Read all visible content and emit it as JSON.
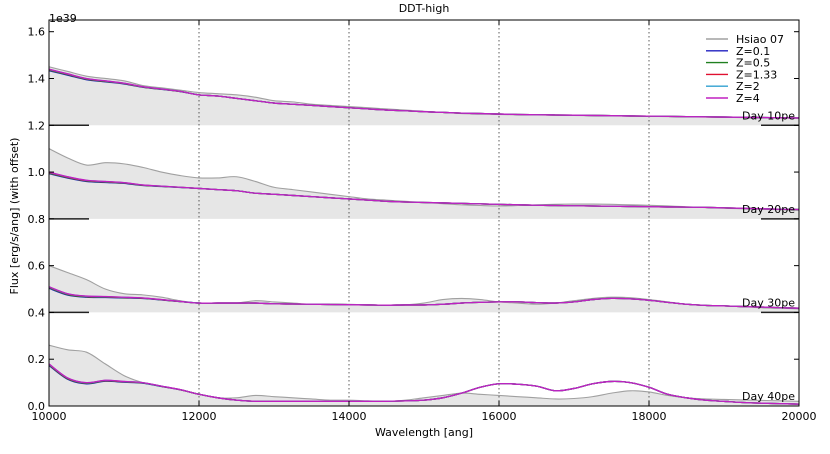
{
  "chart_data": {
    "type": "line",
    "title": "DDT-high",
    "xlabel": "Wavelength [ang]",
    "ylabel": "Flux [erg/s/ang] (with offset)",
    "y_scale_label": "1e39",
    "xlim": [
      10000,
      20000
    ],
    "ylim": [
      0.0,
      1.65
    ],
    "x_ticks": [
      10000,
      12000,
      14000,
      16000,
      18000,
      20000
    ],
    "x_tick_labels": [
      "10000",
      "12000",
      "14000",
      "16000",
      "18000",
      "20000"
    ],
    "y_ticks": [
      0.0,
      0.2,
      0.4,
      0.6,
      0.8,
      1.0,
      1.2,
      1.4,
      1.6
    ],
    "y_tick_labels": [
      "0.0",
      "0.2",
      "0.4",
      "0.6",
      "0.8",
      "1.0",
      "1.2",
      "1.4",
      "1.6"
    ],
    "vlines": [
      12000,
      14000,
      16000,
      18000
    ],
    "legend_position": "top-right",
    "legend": [
      {
        "name": "Hsiao 07",
        "color": "#a0a0a0"
      },
      {
        "name": "Z=0.1",
        "color": "#2020c0"
      },
      {
        "name": "Z=0.5",
        "color": "#208020"
      },
      {
        "name": "Z=1.33",
        "color": "#e01030"
      },
      {
        "name": "Z=2",
        "color": "#30a0d0"
      },
      {
        "name": "Z=4",
        "color": "#c020c0"
      }
    ],
    "x": [
      10000,
      10250,
      10500,
      10750,
      11000,
      11250,
      11500,
      11750,
      12000,
      12250,
      12500,
      12750,
      13000,
      13250,
      13500,
      13750,
      14000,
      14250,
      14500,
      14750,
      15000,
      15250,
      15500,
      15750,
      16000,
      16250,
      16500,
      16750,
      17000,
      17250,
      17500,
      17750,
      18000,
      18250,
      18500,
      18750,
      19000,
      19250,
      19500,
      19750,
      20000
    ],
    "panels": [
      {
        "label": "Day 10pe",
        "offset": 1.2,
        "hsiao": [
          1.45,
          1.43,
          1.41,
          1.4,
          1.39,
          1.37,
          1.36,
          1.35,
          1.34,
          1.335,
          1.33,
          1.32,
          1.305,
          1.3,
          1.29,
          1.285,
          1.28,
          1.275,
          1.27,
          1.265,
          1.26,
          1.255,
          1.25,
          1.248,
          1.246,
          1.245,
          1.244,
          1.243,
          1.242,
          1.241,
          1.24,
          1.239,
          1.238,
          1.237,
          1.236,
          1.235,
          1.234,
          1.233,
          1.232,
          1.231,
          1.23
        ],
        "model": [
          1.44,
          1.42,
          1.4,
          1.39,
          1.38,
          1.365,
          1.355,
          1.345,
          1.33,
          1.325,
          1.315,
          1.305,
          1.295,
          1.29,
          1.285,
          1.28,
          1.275,
          1.27,
          1.265,
          1.262,
          1.258,
          1.255,
          1.252,
          1.25,
          1.248,
          1.246,
          1.245,
          1.244,
          1.243,
          1.242,
          1.241,
          1.24,
          1.239,
          1.238,
          1.237,
          1.236,
          1.235,
          1.234,
          1.233,
          1.232,
          1.231
        ]
      },
      {
        "label": "Day 20pe",
        "offset": 0.8,
        "hsiao": [
          1.1,
          1.06,
          1.03,
          1.04,
          1.035,
          1.02,
          1.0,
          0.985,
          0.975,
          0.975,
          0.98,
          0.96,
          0.935,
          0.925,
          0.915,
          0.905,
          0.895,
          0.885,
          0.88,
          0.875,
          0.87,
          0.865,
          0.86,
          0.857,
          0.855,
          0.857,
          0.86,
          0.862,
          0.863,
          0.863,
          0.862,
          0.86,
          0.858,
          0.855,
          0.852,
          0.848,
          0.845,
          0.843,
          0.841,
          0.839,
          0.837
        ],
        "model": [
          1.0,
          0.98,
          0.965,
          0.96,
          0.955,
          0.945,
          0.94,
          0.935,
          0.93,
          0.925,
          0.92,
          0.91,
          0.905,
          0.9,
          0.895,
          0.89,
          0.885,
          0.88,
          0.875,
          0.872,
          0.87,
          0.868,
          0.866,
          0.864,
          0.862,
          0.86,
          0.858,
          0.857,
          0.856,
          0.855,
          0.854,
          0.853,
          0.852,
          0.851,
          0.85,
          0.849,
          0.847,
          0.845,
          0.843,
          0.841,
          0.84
        ]
      },
      {
        "label": "Day 30pe",
        "offset": 0.4,
        "hsiao": [
          0.6,
          0.57,
          0.54,
          0.5,
          0.48,
          0.475,
          0.465,
          0.45,
          0.44,
          0.44,
          0.44,
          0.45,
          0.445,
          0.44,
          0.435,
          0.435,
          0.435,
          0.432,
          0.43,
          0.432,
          0.44,
          0.455,
          0.46,
          0.455,
          0.445,
          0.44,
          0.435,
          0.44,
          0.45,
          0.46,
          0.465,
          0.463,
          0.455,
          0.445,
          0.435,
          0.43,
          0.428,
          0.425,
          0.42,
          0.418,
          0.415
        ],
        "model": [
          0.51,
          0.48,
          0.47,
          0.468,
          0.465,
          0.462,
          0.455,
          0.447,
          0.44,
          0.44,
          0.44,
          0.44,
          0.437,
          0.436,
          0.435,
          0.434,
          0.433,
          0.432,
          0.431,
          0.432,
          0.432,
          0.435,
          0.44,
          0.443,
          0.445,
          0.445,
          0.442,
          0.44,
          0.445,
          0.455,
          0.46,
          0.458,
          0.452,
          0.443,
          0.435,
          0.43,
          0.428,
          0.425,
          0.423,
          0.42,
          0.418
        ]
      },
      {
        "label": "Day 40pe",
        "offset": 0.0,
        "hsiao": [
          0.26,
          0.24,
          0.23,
          0.18,
          0.13,
          0.1,
          0.085,
          0.07,
          0.05,
          0.035,
          0.035,
          0.045,
          0.04,
          0.035,
          0.03,
          0.025,
          0.025,
          0.022,
          0.02,
          0.025,
          0.035,
          0.045,
          0.055,
          0.05,
          0.045,
          0.04,
          0.035,
          0.03,
          0.032,
          0.04,
          0.055,
          0.065,
          0.06,
          0.045,
          0.035,
          0.03,
          0.028,
          0.026,
          0.024,
          0.022,
          0.02
        ],
        "model": [
          0.18,
          0.12,
          0.1,
          0.11,
          0.105,
          0.1,
          0.085,
          0.07,
          0.05,
          0.035,
          0.025,
          0.02,
          0.02,
          0.02,
          0.02,
          0.02,
          0.02,
          0.02,
          0.02,
          0.022,
          0.025,
          0.035,
          0.055,
          0.08,
          0.095,
          0.093,
          0.085,
          0.065,
          0.075,
          0.095,
          0.105,
          0.1,
          0.08,
          0.05,
          0.035,
          0.025,
          0.02,
          0.015,
          0.012,
          0.01,
          0.008
        ]
      }
    ]
  }
}
